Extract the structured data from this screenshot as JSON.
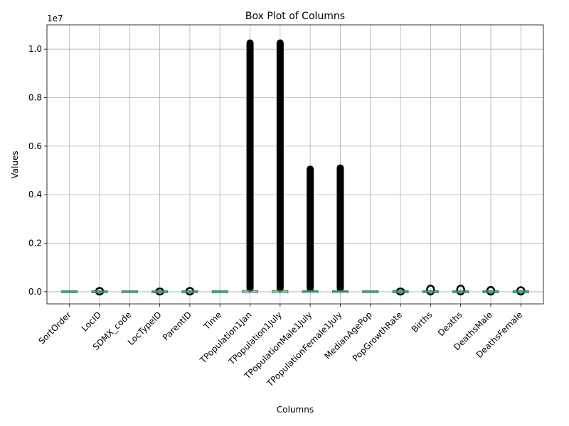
{
  "chart_data": {
    "type": "box",
    "title": "Box Plot of Columns",
    "xlabel": "Columns",
    "ylabel": "Values",
    "y_multiplier_label": "1e7",
    "ylim": [
      -0.05,
      1.1
    ],
    "yticks": [
      0.0,
      0.2,
      0.4,
      0.6,
      0.8,
      1.0
    ],
    "ytick_labels": [
      "0.0",
      "0.2",
      "0.4",
      "0.6",
      "0.8",
      "1.0"
    ],
    "grid": true,
    "colors": {
      "box": "#1f77b4",
      "median": "#2ca02c",
      "outlier": "#000000",
      "grid": "#b0b0b0"
    },
    "categories": [
      "SortOrder",
      "LocID",
      "SDMX_code",
      "LocTypeID",
      "ParentID",
      "Time",
      "TPopulation1Jan",
      "TPopulation1July",
      "TPopulationMale1July",
      "TPopulationFemale1July",
      "MedianAgePop",
      "PopGrowthRate",
      "Births",
      "Deaths",
      "DeathsMale",
      "DeathsFemale"
    ],
    "series": [
      {
        "category": "SortOrder",
        "median": 0.0001,
        "outlier_max": null
      },
      {
        "category": "LocID",
        "median": 0.0001,
        "outlier_max": 0.004
      },
      {
        "category": "SDMX_code",
        "median": 0.0001,
        "outlier_max": null
      },
      {
        "category": "LocTypeID",
        "median": 0.0,
        "outlier_max": 0.002
      },
      {
        "category": "ParentID",
        "median": 0.0001,
        "outlier_max": 0.004
      },
      {
        "category": "Time",
        "median": 0.0002,
        "outlier_max": null
      },
      {
        "category": "TPopulation1Jan",
        "median": 0.004,
        "outlier_max": 1.04
      },
      {
        "category": "TPopulation1July",
        "median": 0.004,
        "outlier_max": 1.04
      },
      {
        "category": "TPopulationMale1July",
        "median": 0.002,
        "outlier_max": 0.52
      },
      {
        "category": "TPopulationFemale1July",
        "median": 0.002,
        "outlier_max": 0.525
      },
      {
        "category": "MedianAgePop",
        "median": 0.0,
        "outlier_max": null
      },
      {
        "category": "PopGrowthRate",
        "median": 0.0,
        "outlier_max": 0.002
      },
      {
        "category": "Births",
        "median": 0.0001,
        "outlier_max": 0.014
      },
      {
        "category": "Deaths",
        "median": 0.0001,
        "outlier_max": 0.014
      },
      {
        "category": "DeathsMale",
        "median": 0.0001,
        "outlier_max": 0.008
      },
      {
        "category": "DeathsFemale",
        "median": 0.0001,
        "outlier_max": 0.007
      }
    ]
  }
}
